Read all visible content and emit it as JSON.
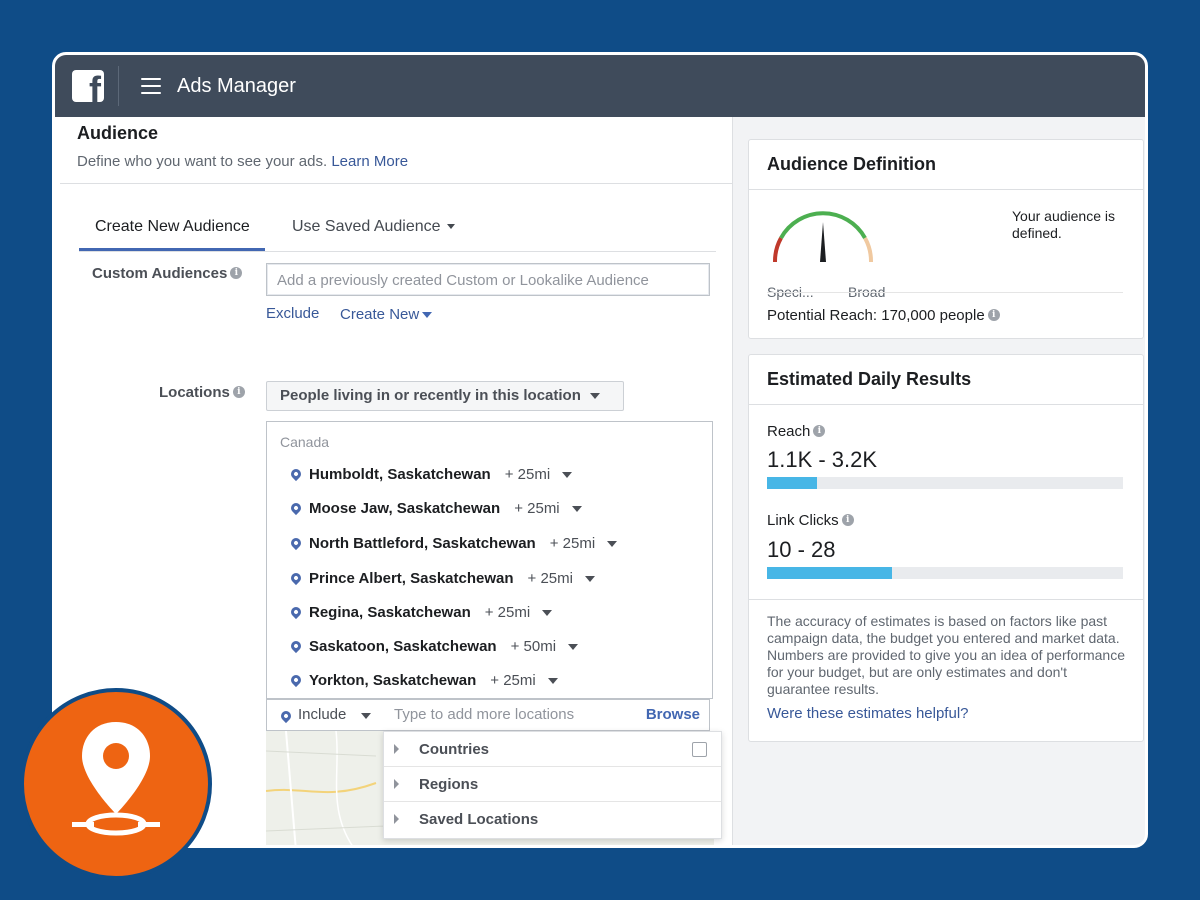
{
  "app": {
    "logo_letter": "f",
    "title": "Ads Manager"
  },
  "audience": {
    "title": "Audience",
    "subtitle": "Define who you want to see your ads.",
    "learn_more": "Learn More"
  },
  "tabs": [
    {
      "label": "Create New Audience",
      "active": true
    },
    {
      "label": "Use Saved Audience",
      "active": false
    }
  ],
  "custom_audiences": {
    "label": "Custom Audiences",
    "placeholder": "Add a previously created Custom or Lookalike Audience",
    "exclude": "Exclude",
    "create_new": "Create New"
  },
  "locations": {
    "label": "Locations",
    "mode": "People living in or recently in this location",
    "country": "Canada",
    "items": [
      {
        "name": "Humboldt, Saskatchewan",
        "radius": "+ 25mi"
      },
      {
        "name": "Moose Jaw, Saskatchewan",
        "radius": "+ 25mi"
      },
      {
        "name": "North Battleford, Saskatchewan",
        "radius": "+ 25mi"
      },
      {
        "name": "Prince Albert, Saskatchewan",
        "radius": "+ 25mi"
      },
      {
        "name": "Regina, Saskatchewan",
        "radius": "+ 25mi"
      },
      {
        "name": "Saskatoon, Saskatchewan",
        "radius": "+ 50mi"
      },
      {
        "name": "Yorkton, Saskatchewan",
        "radius": "+ 25mi"
      }
    ],
    "include": "Include",
    "input_placeholder": "Type to add more locations",
    "browse": "Browse",
    "dropdown": [
      "Countries",
      "Regions",
      "Saved Locations"
    ]
  },
  "audience_definition": {
    "title": "Audience Definition",
    "gauge_left": "Speci...",
    "gauge_right": "Broad",
    "status": "Your audience is defined.",
    "potential_reach": "Potential Reach: 170,000 people"
  },
  "estimated_results": {
    "title": "Estimated Daily Results",
    "reach_label": "Reach",
    "reach_value": "1.1K - 3.2K",
    "reach_fill": 0.14,
    "clicks_label": "Link Clicks",
    "clicks_value": "10 - 28",
    "clicks_fill": 0.35,
    "note": "The accuracy of estimates is based on factors like past campaign data, the budget you entered and market data. Numbers are provided to give you an idea of performance for your budget, but are only estimates and don't guarantee results.",
    "feedback_link": "Were these estimates helpful?"
  },
  "colors": {
    "page_background": "#0f4c87",
    "topbar": "#3f4b5b",
    "link": "#385898",
    "bar_fill": "#47b6e6",
    "badge": "#ee6412"
  },
  "icons": {
    "logo": "facebook-logo-icon",
    "menu": "hamburger-menu-icon",
    "info": "info-icon",
    "pin": "location-pin-icon",
    "badge": "map-pin-badge-icon"
  }
}
